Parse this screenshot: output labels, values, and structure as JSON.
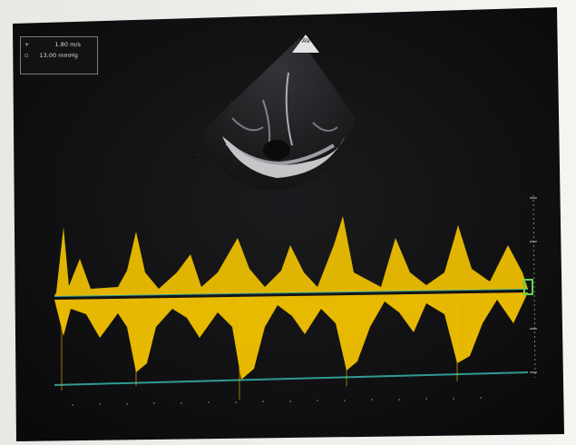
{
  "measurement_box": {
    "row1_value": "1.80 m/s",
    "row2_value": "13.00 mmHg"
  },
  "colors": {
    "screen_background": "#0d0d0f",
    "doppler_envelope": "#f2c200",
    "baseline_line": "#2f9b92",
    "marker_green": "#5cd64d",
    "paper_frame": "#f2f1ee"
  },
  "icons": {
    "probe_mark": "triangle-marker-icon",
    "baseline_marker": "green-bracket-icon"
  }
}
